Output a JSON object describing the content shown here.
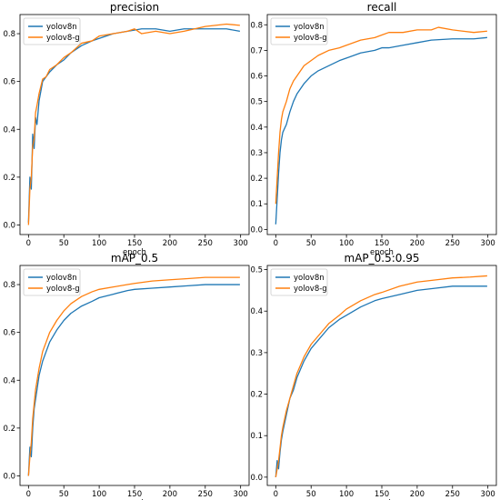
{
  "chart_data": [
    {
      "type": "line",
      "title": "precision",
      "xlabel": "epoch",
      "ylabel": "",
      "xlim": [
        -12,
        312
      ],
      "ylim": [
        -0.04,
        0.88
      ],
      "xticks": [
        0,
        50,
        100,
        150,
        200,
        250,
        300
      ],
      "yticks": [
        0.0,
        0.2,
        0.4,
        0.6,
        0.8
      ],
      "ytick_labels": [
        "0.0",
        "0.2",
        "0.4",
        "0.6",
        "0.8"
      ],
      "legend": "top-left",
      "series": [
        {
          "name": "yolov8n",
          "color": "#1f77b4",
          "x": [
            0,
            2,
            4,
            6,
            8,
            10,
            12,
            15,
            20,
            25,
            30,
            40,
            50,
            60,
            75,
            90,
            100,
            120,
            140,
            150,
            160,
            180,
            200,
            220,
            250,
            280,
            299
          ],
          "y": [
            0.01,
            0.2,
            0.15,
            0.38,
            0.32,
            0.45,
            0.42,
            0.52,
            0.6,
            0.62,
            0.64,
            0.67,
            0.69,
            0.72,
            0.75,
            0.77,
            0.78,
            0.8,
            0.81,
            0.815,
            0.82,
            0.82,
            0.81,
            0.82,
            0.82,
            0.82,
            0.81
          ]
        },
        {
          "name": "yolov8-g",
          "color": "#ff7f0e",
          "x": [
            0,
            2,
            4,
            6,
            8,
            10,
            12,
            15,
            20,
            25,
            30,
            40,
            50,
            60,
            75,
            90,
            100,
            120,
            140,
            150,
            160,
            180,
            200,
            220,
            250,
            280,
            299
          ],
          "y": [
            0.0,
            0.15,
            0.2,
            0.33,
            0.36,
            0.47,
            0.5,
            0.55,
            0.61,
            0.62,
            0.65,
            0.67,
            0.7,
            0.72,
            0.76,
            0.77,
            0.79,
            0.8,
            0.81,
            0.82,
            0.8,
            0.81,
            0.8,
            0.81,
            0.83,
            0.84,
            0.835
          ]
        }
      ]
    },
    {
      "type": "line",
      "title": "recall",
      "xlabel": "epoch",
      "ylabel": "",
      "xlim": [
        -12,
        312
      ],
      "ylim": [
        -0.02,
        0.84
      ],
      "xticks": [
        0,
        50,
        100,
        150,
        200,
        250,
        300
      ],
      "yticks": [
        0.0,
        0.1,
        0.2,
        0.3,
        0.4,
        0.5,
        0.6,
        0.7,
        0.8
      ],
      "ytick_labels": [
        "0.0",
        "0.1",
        "0.2",
        "0.3",
        "0.4",
        "0.5",
        "0.6",
        "0.7",
        "0.8"
      ],
      "legend": "top-left",
      "series": [
        {
          "name": "yolov8n",
          "color": "#1f77b4",
          "x": [
            0,
            2,
            4,
            6,
            8,
            10,
            15,
            20,
            25,
            30,
            40,
            50,
            60,
            75,
            90,
            100,
            120,
            140,
            150,
            160,
            180,
            200,
            220,
            250,
            280,
            299
          ],
          "y": [
            0.02,
            0.12,
            0.22,
            0.3,
            0.35,
            0.38,
            0.41,
            0.46,
            0.5,
            0.53,
            0.57,
            0.6,
            0.62,
            0.64,
            0.66,
            0.67,
            0.69,
            0.7,
            0.71,
            0.71,
            0.72,
            0.73,
            0.74,
            0.745,
            0.745,
            0.75
          ]
        },
        {
          "name": "yolov8-g",
          "color": "#ff7f0e",
          "x": [
            0,
            2,
            4,
            6,
            8,
            10,
            15,
            20,
            25,
            30,
            40,
            50,
            60,
            75,
            90,
            100,
            120,
            140,
            150,
            160,
            180,
            200,
            220,
            230,
            250,
            280,
            299
          ],
          "y": [
            0.1,
            0.2,
            0.3,
            0.38,
            0.43,
            0.46,
            0.5,
            0.55,
            0.58,
            0.6,
            0.64,
            0.66,
            0.68,
            0.7,
            0.71,
            0.72,
            0.74,
            0.75,
            0.76,
            0.77,
            0.77,
            0.78,
            0.78,
            0.79,
            0.78,
            0.77,
            0.775
          ]
        }
      ]
    },
    {
      "type": "line",
      "title": "mAP_0.5",
      "xlabel": "epoch",
      "ylabel": "",
      "xlim": [
        -12,
        312
      ],
      "ylim": [
        -0.04,
        0.88
      ],
      "xticks": [
        0,
        50,
        100,
        150,
        200,
        250,
        300
      ],
      "yticks": [
        0.0,
        0.2,
        0.4,
        0.6,
        0.8
      ],
      "ytick_labels": [
        "0.0",
        "0.2",
        "0.4",
        "0.6",
        "0.8"
      ],
      "legend": "top-left",
      "series": [
        {
          "name": "yolov8n",
          "color": "#1f77b4",
          "x": [
            0,
            2,
            4,
            6,
            8,
            10,
            15,
            20,
            25,
            30,
            40,
            50,
            60,
            75,
            90,
            100,
            120,
            140,
            150,
            175,
            200,
            225,
            250,
            275,
            299
          ],
          "y": [
            0.0,
            0.12,
            0.08,
            0.2,
            0.28,
            0.32,
            0.42,
            0.48,
            0.52,
            0.56,
            0.61,
            0.65,
            0.68,
            0.71,
            0.73,
            0.745,
            0.76,
            0.775,
            0.78,
            0.785,
            0.79,
            0.795,
            0.8,
            0.8,
            0.8
          ]
        },
        {
          "name": "yolov8-g",
          "color": "#ff7f0e",
          "x": [
            0,
            2,
            4,
            6,
            8,
            10,
            15,
            20,
            25,
            30,
            40,
            50,
            60,
            75,
            90,
            100,
            120,
            140,
            150,
            175,
            200,
            225,
            250,
            275,
            299
          ],
          "y": [
            0.0,
            0.08,
            0.14,
            0.24,
            0.3,
            0.36,
            0.45,
            0.52,
            0.56,
            0.6,
            0.65,
            0.69,
            0.72,
            0.75,
            0.77,
            0.78,
            0.79,
            0.8,
            0.805,
            0.815,
            0.82,
            0.825,
            0.83,
            0.83,
            0.83
          ]
        }
      ]
    },
    {
      "type": "line",
      "title": "mAP_0.5:0.95",
      "xlabel": "epoch",
      "ylabel": "",
      "xlim": [
        -12,
        312
      ],
      "ylim": [
        -0.02,
        0.51
      ],
      "xticks": [
        0,
        50,
        100,
        150,
        200,
        250,
        300
      ],
      "yticks": [
        0.0,
        0.1,
        0.2,
        0.3,
        0.4,
        0.5
      ],
      "ytick_labels": [
        "0.0",
        "0.1",
        "0.2",
        "0.3",
        "0.4",
        "0.5"
      ],
      "legend": "top-left",
      "series": [
        {
          "name": "yolov8n",
          "color": "#1f77b4",
          "x": [
            0,
            2,
            4,
            6,
            8,
            10,
            15,
            20,
            25,
            30,
            40,
            50,
            60,
            75,
            90,
            100,
            120,
            140,
            150,
            175,
            200,
            225,
            250,
            275,
            299
          ],
          "y": [
            0.0,
            0.04,
            0.02,
            0.06,
            0.09,
            0.11,
            0.15,
            0.19,
            0.21,
            0.24,
            0.28,
            0.31,
            0.33,
            0.36,
            0.38,
            0.39,
            0.41,
            0.425,
            0.43,
            0.44,
            0.45,
            0.455,
            0.46,
            0.46,
            0.46
          ]
        },
        {
          "name": "yolov8-g",
          "color": "#ff7f0e",
          "x": [
            0,
            2,
            4,
            6,
            8,
            10,
            15,
            20,
            25,
            30,
            40,
            50,
            60,
            75,
            90,
            100,
            120,
            140,
            150,
            175,
            200,
            225,
            250,
            275,
            299
          ],
          "y": [
            0.0,
            0.02,
            0.04,
            0.07,
            0.1,
            0.12,
            0.16,
            0.19,
            0.22,
            0.25,
            0.29,
            0.32,
            0.34,
            0.37,
            0.39,
            0.405,
            0.425,
            0.44,
            0.445,
            0.46,
            0.47,
            0.475,
            0.48,
            0.482,
            0.485
          ]
        }
      ]
    }
  ]
}
